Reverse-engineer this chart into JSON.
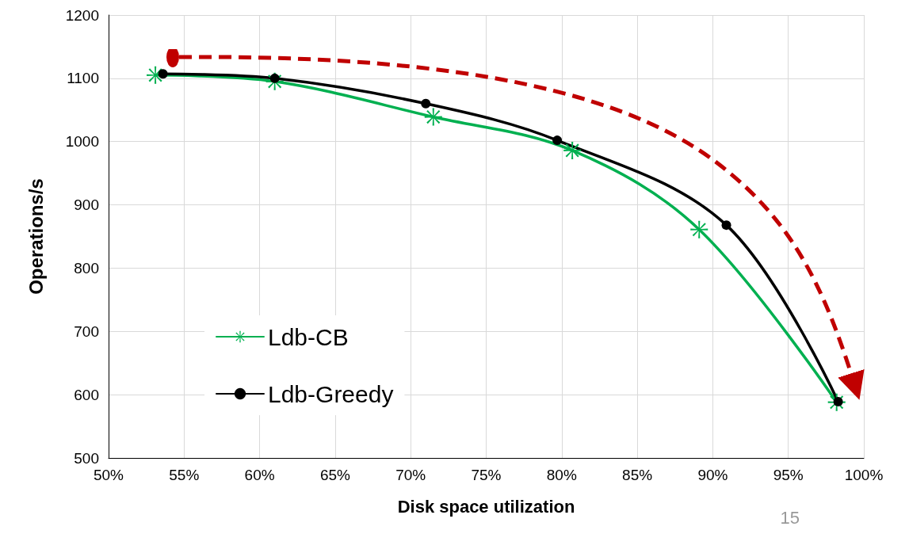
{
  "chart_data": {
    "type": "line",
    "xlabel": "Disk space utilization",
    "ylabel": "Operations/s",
    "series": [
      {
        "name": "Ldb-CB",
        "color": "#00b050",
        "marker": "cross",
        "x": [
          53.1,
          61.0,
          71.5,
          80.7,
          89.1,
          98.2
        ],
        "values": [
          1105,
          1095,
          1039,
          986,
          861,
          588
        ]
      },
      {
        "name": "Ldb-Greedy",
        "color": "#000000",
        "marker": "circle",
        "x": [
          53.6,
          61.0,
          71.0,
          79.7,
          90.9,
          98.3
        ],
        "values": [
          1107,
          1100,
          1060,
          1002,
          868,
          589
        ]
      }
    ],
    "xlim": [
      50,
      100
    ],
    "xticks": [
      {
        "value": 50,
        "label": "50%"
      },
      {
        "value": 55,
        "label": "55%"
      },
      {
        "value": 60,
        "label": "60%"
      },
      {
        "value": 65,
        "label": "65%"
      },
      {
        "value": 70,
        "label": "70%"
      },
      {
        "value": 75,
        "label": "75%"
      },
      {
        "value": 80,
        "label": "80%"
      },
      {
        "value": 85,
        "label": "85%"
      },
      {
        "value": 90,
        "label": "90%"
      },
      {
        "value": 95,
        "label": "95%"
      },
      {
        "value": 100,
        "label": "100%"
      }
    ],
    "ylim": [
      500,
      1200
    ],
    "yticks": [
      500,
      600,
      700,
      800,
      900,
      1000,
      1100,
      1200
    ],
    "grid": true,
    "legend": "bottom left",
    "line_style": "solid",
    "annotations": [
      "15"
    ]
  }
}
